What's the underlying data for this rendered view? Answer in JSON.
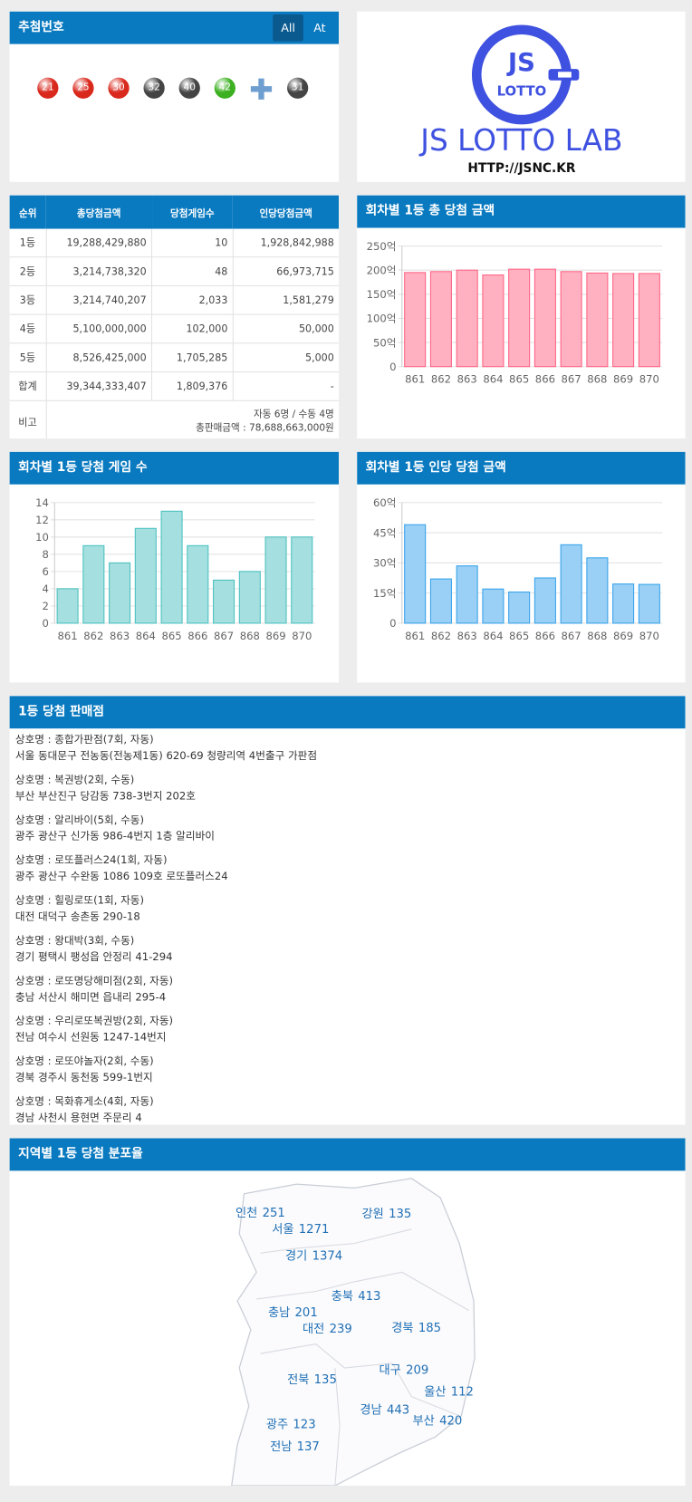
{
  "draw_numbers": {
    "title": "추첨번호",
    "buttons": [
      "All",
      "At"
    ],
    "numbers": [
      21,
      25,
      30,
      32,
      40,
      42
    ],
    "bonus": 31
  },
  "logo": {
    "mark_top": "JS",
    "mark_bottom": "LOTTO",
    "name": "JS LOTTO LAB",
    "url": "HTTP://JSNC.KR"
  },
  "prize_table": {
    "headers": [
      "순위",
      "총당첨금액",
      "당첨게임수",
      "인당당첨금액"
    ],
    "rows": [
      [
        "1등",
        "19,288,429,880",
        "10",
        "1,928,842,988"
      ],
      [
        "2등",
        "3,214,738,320",
        "48",
        "66,973,715"
      ],
      [
        "3등",
        "3,214,740,207",
        "2,033",
        "1,581,279"
      ],
      [
        "4등",
        "5,100,000,000",
        "102,000",
        "50,000"
      ],
      [
        "5등",
        "8,526,425,000",
        "1,705,285",
        "5,000"
      ],
      [
        "합계",
        "39,344,333,407",
        "1,809,376",
        "-"
      ]
    ],
    "note_label": "비고",
    "note_lines": [
      "자동 6명 / 수동 4명",
      "총판매금액 : 78,688,663,000원"
    ]
  },
  "chart_data": [
    {
      "type": "bar",
      "title": "회차별 1등 총 당첨 금액",
      "categories": [
        "861",
        "862",
        "863",
        "864",
        "865",
        "866",
        "867",
        "868",
        "869",
        "870"
      ],
      "values": [
        195,
        197,
        200,
        190,
        202,
        202,
        197,
        194,
        193,
        193
      ],
      "color": "#ffb1c1",
      "border_color": "#ff6384",
      "ylim": [
        0,
        250
      ],
      "yticks": [
        0,
        {
          "value": 50,
          "label": "50억"
        },
        {
          "value": 100,
          "label": "100억"
        },
        {
          "value": 150,
          "label": "150억"
        },
        {
          "value": 200,
          "label": "200억"
        },
        {
          "value": 250,
          "label": "250억"
        }
      ],
      "grid": true
    },
    {
      "type": "bar",
      "title": "회차별 1등 당첨 게임 수",
      "categories": [
        "861",
        "862",
        "863",
        "864",
        "865",
        "866",
        "867",
        "868",
        "869",
        "870"
      ],
      "values": [
        4,
        9,
        7,
        11,
        13,
        9,
        5,
        6,
        10,
        10
      ],
      "color": "#a5dfdf",
      "border_color": "#4bc0c0",
      "ylim": [
        0,
        14
      ],
      "yticks": [
        0,
        2,
        4,
        6,
        8,
        10,
        12,
        14
      ],
      "grid": true
    },
    {
      "type": "bar",
      "title": "회차별 1등 인당 당첨 금액",
      "categories": [
        "861",
        "862",
        "863",
        "864",
        "865",
        "866",
        "867",
        "868",
        "869",
        "870"
      ],
      "values": [
        49,
        22,
        28.5,
        17,
        15.5,
        22.5,
        39,
        32.5,
        19.5,
        19.3
      ],
      "color": "#9ad0f5",
      "border_color": "#36a2eb",
      "ylim": [
        0,
        60
      ],
      "yticks": [
        0,
        {
          "value": 15,
          "label": "15억"
        },
        {
          "value": 30,
          "label": "30억"
        },
        {
          "value": 45,
          "label": "45억"
        },
        {
          "value": 60,
          "label": "60억"
        }
      ],
      "grid": true
    }
  ],
  "stores": {
    "title": "1등 당첨 판매점",
    "items": [
      {
        "name": "상호명 : 종합가판점(7회, 자동)",
        "address": "서울 동대문구 전농동(전농제1동) 620-69 청량리역 4번출구 가판점"
      },
      {
        "name": "상호명 : 복권방(2회, 수동)",
        "address": "부산 부산진구 당감동 738-3번지 202호"
      },
      {
        "name": "상호명 : 알리바이(5회, 수동)",
        "address": "광주 광산구 신가동 986-4번지 1층 알리바이"
      },
      {
        "name": "상호명 : 로또플러스24(1회, 자동)",
        "address": "광주 광산구 수완동 1086 109호 로또플러스24"
      },
      {
        "name": "상호명 : 힐링로또(1회, 자동)",
        "address": "대전 대덕구 송촌동 290-18"
      },
      {
        "name": "상호명 : 왕대박(3회, 수동)",
        "address": "경기 평택시 팽성읍 안정리 41-294"
      },
      {
        "name": "상호명 : 로또명당해미점(2회, 자동)",
        "address": "충남 서산시 해미면 읍내리 295-4"
      },
      {
        "name": "상호명 : 우리로또복권방(2회, 자동)",
        "address": "전남 여수시 선원동 1247-14번지"
      },
      {
        "name": "상호명 : 로또야놀자(2회, 수동)",
        "address": "경북 경주시 동천동 599-1번지"
      },
      {
        "name": "상호명 : 목화휴게소(4회, 자동)",
        "address": "경남 사천시 용현면 주문리 4"
      }
    ]
  },
  "regions": {
    "title": "지역별 1등 당첨 분포율",
    "items": [
      {
        "name": "인천",
        "value": 251
      },
      {
        "name": "서울",
        "value": 1271
      },
      {
        "name": "강원",
        "value": 135
      },
      {
        "name": "경기",
        "value": 1374
      },
      {
        "name": "충북",
        "value": 413
      },
      {
        "name": "충남",
        "value": 201
      },
      {
        "name": "대전",
        "value": 239
      },
      {
        "name": "경북",
        "value": 185
      },
      {
        "name": "대구",
        "value": 209
      },
      {
        "name": "전북",
        "value": 135
      },
      {
        "name": "울산",
        "value": 112
      },
      {
        "name": "경남",
        "value": 443
      },
      {
        "name": "부산",
        "value": 420
      },
      {
        "name": "광주",
        "value": 123
      },
      {
        "name": "전남",
        "value": 137
      }
    ]
  }
}
